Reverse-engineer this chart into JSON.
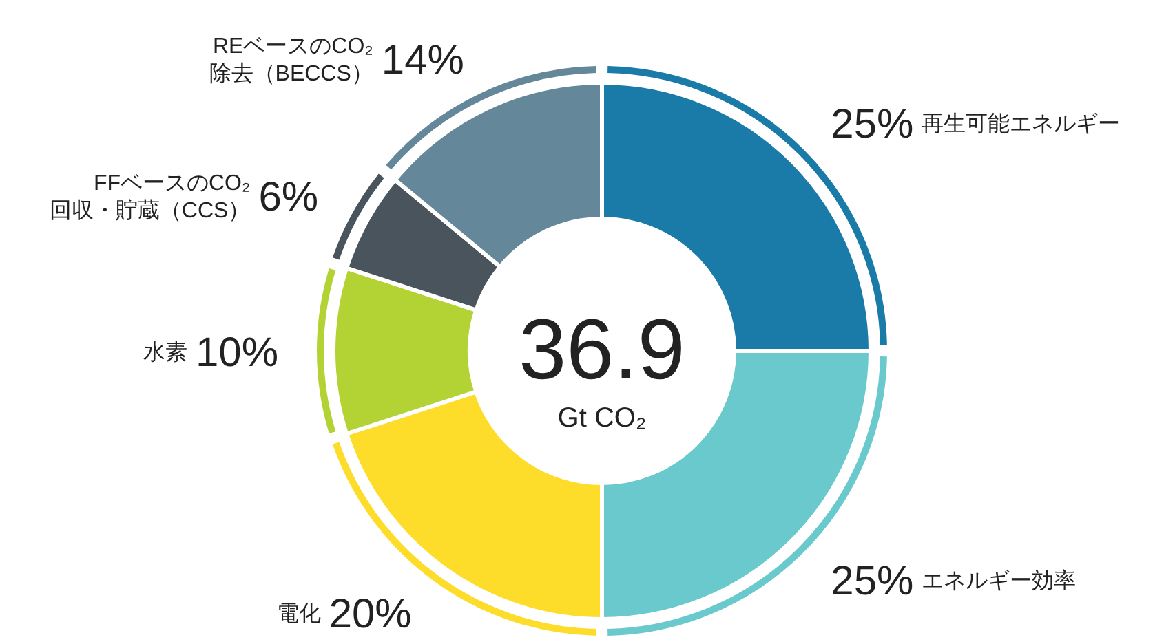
{
  "chart_data": {
    "type": "donut",
    "categories": [
      "再生可能エネルギー",
      "エネルギー効率",
      "電化",
      "水素",
      "FFベースのCO₂\n回収・貯蔵（CCS）",
      "REベースのCO₂\n除去（BECCS）"
    ],
    "values": [
      25,
      25,
      20,
      10,
      6,
      14
    ],
    "value_labels": [
      "25%",
      "25%",
      "20%",
      "10%",
      "6%",
      "14%"
    ],
    "colors": [
      "#1a7aa8",
      "#69c9cc",
      "#fddc2a",
      "#b3d234",
      "#4a545c",
      "#648899"
    ],
    "annotations": [
      "36.9",
      "Gt CO₂"
    ]
  }
}
